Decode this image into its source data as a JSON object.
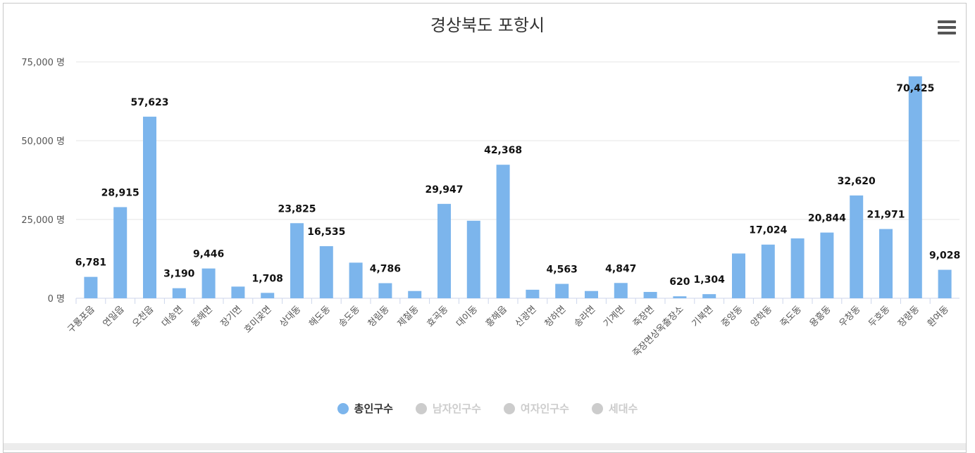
{
  "chart_data": {
    "type": "bar",
    "title": "경상북도 포항시",
    "ylim": [
      0,
      75000
    ],
    "yticks": [
      "0 명",
      "25,000 명",
      "50,000 명",
      "75,000 명"
    ],
    "ytick_values": [
      0,
      25000,
      50000,
      75000
    ],
    "grid": true,
    "legend_position": "bottom",
    "bar_color": "#7cb5ec",
    "categories": [
      "구룡포읍",
      "연일읍",
      "오천읍",
      "대송면",
      "동해면",
      "장기면",
      "호미곶면",
      "상대동",
      "해도동",
      "송도동",
      "청림동",
      "제철동",
      "효곡동",
      "대이동",
      "흥해읍",
      "신광면",
      "청하면",
      "송라면",
      "기계면",
      "죽장면",
      "죽장면상옥출장소",
      "기북면",
      "중앙동",
      "양학동",
      "죽도동",
      "용흥동",
      "우창동",
      "두호동",
      "장량동",
      "환여동"
    ],
    "values": [
      6781,
      28915,
      57623,
      3190,
      9446,
      3700,
      1708,
      23825,
      16535,
      11300,
      4786,
      2300,
      29947,
      24600,
      42368,
      2700,
      4563,
      2300,
      4847,
      2000,
      620,
      1304,
      14200,
      17024,
      19000,
      20844,
      32620,
      21971,
      70425,
      9028
    ],
    "data_labels": [
      "6,781",
      "28,915",
      "57,623",
      "3,190",
      "9,446",
      "",
      "1,708",
      "23,825",
      "16,535",
      "",
      "4,786",
      "",
      "29,947",
      "",
      "42,368",
      "",
      "4,563",
      "",
      "4,847",
      "",
      "620",
      "1,304",
      "",
      "17,024",
      "",
      "20,844",
      "32,620",
      "21,971",
      "70,425",
      "9,028"
    ],
    "series": [
      {
        "name": "총인구수",
        "visible": true,
        "color": "#7cb5ec"
      },
      {
        "name": "남자인구수",
        "visible": false,
        "color": "#cccccc"
      },
      {
        "name": "여자인구수",
        "visible": false,
        "color": "#cccccc"
      },
      {
        "name": "세대수",
        "visible": false,
        "color": "#cccccc"
      }
    ]
  }
}
